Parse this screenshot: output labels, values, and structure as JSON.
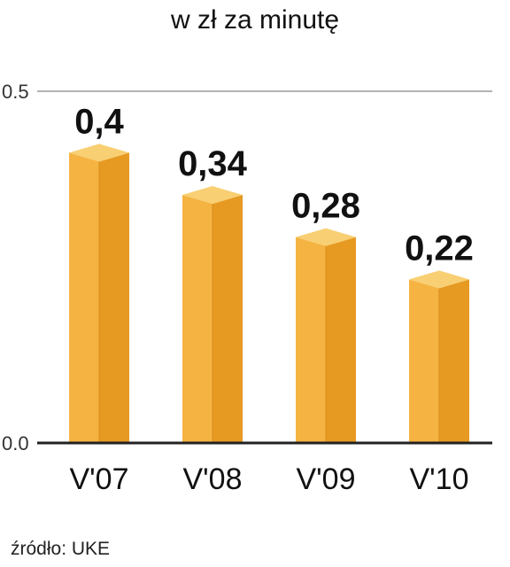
{
  "unit_label": "w zł za minutę",
  "source": "źródło: UKE",
  "colors": {
    "front": "#F5B342",
    "side": "#E69A22",
    "top": "#F8CF72",
    "axis": "#222222",
    "grid": "#9a9a9a"
  },
  "chart_data": {
    "type": "bar",
    "title": "",
    "xlabel": "",
    "ylabel": "",
    "categories": [
      "V'07",
      "V'08",
      "V'09",
      "V'10"
    ],
    "values": [
      0.4,
      0.34,
      0.28,
      0.22
    ],
    "data_labels": [
      "0,4",
      "0,34",
      "0,28",
      "0,22"
    ],
    "ylim": [
      0,
      0.5
    ],
    "yticks": [
      0.0,
      0.5
    ],
    "ytick_labels": [
      "0.0",
      "0.5"
    ],
    "grid": true,
    "style": "3d-bars"
  }
}
